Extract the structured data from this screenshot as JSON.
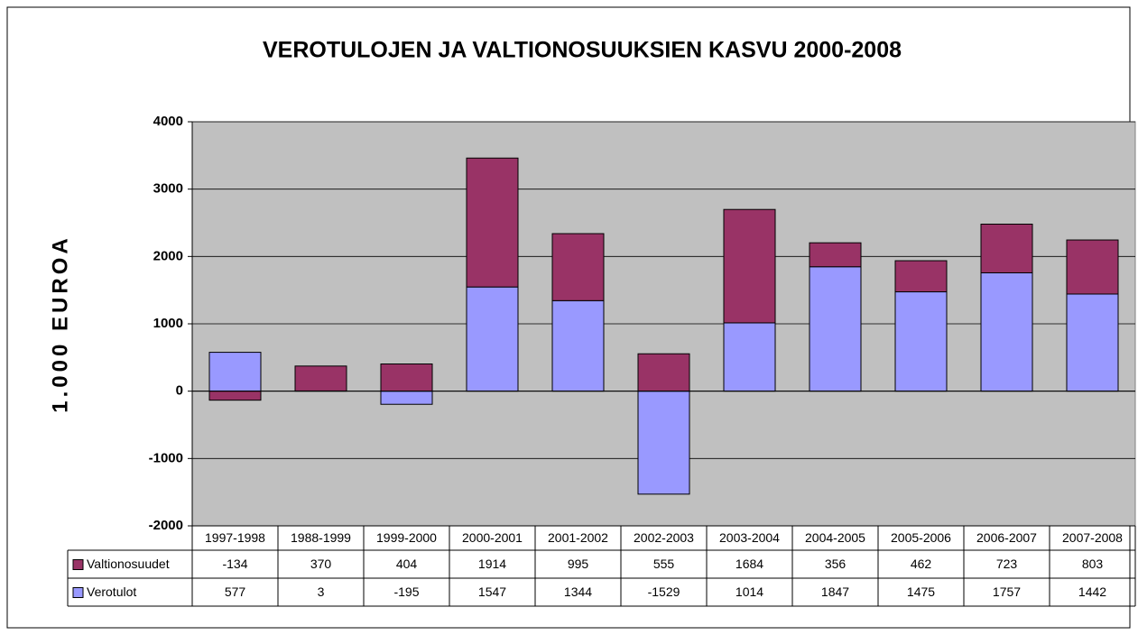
{
  "chart_data": {
    "type": "bar",
    "stacked": true,
    "title": "VEROTULOJEN JA VALTIONOSUUKSIEN KASVU 2000-2008",
    "y_label": "1.000  EUROA",
    "categories": [
      "1997-1998",
      "1988-1999",
      "1999-2000",
      "2000-2001",
      "2001-2002",
      "2002-2003",
      "2003-2004",
      "2004-2005",
      "2005-2006",
      "2006-2007",
      "2007-2008"
    ],
    "series": [
      {
        "name": "Valtionosuudet",
        "color": "#993366",
        "values": [
          -134,
          370,
          404,
          1914,
          995,
          555,
          1684,
          356,
          462,
          723,
          803
        ]
      },
      {
        "name": "Verotulot",
        "color": "#9999ff",
        "values": [
          577,
          3,
          -195,
          1547,
          1344,
          -1529,
          1014,
          1847,
          1475,
          1757,
          1442
        ]
      }
    ],
    "stack_order": [
      1,
      0
    ],
    "ylim": [
      -2000,
      4000
    ],
    "yticks": [
      -2000,
      -1000,
      0,
      1000,
      2000,
      3000,
      4000
    ],
    "grid": true,
    "plot_background": "#c0c0c0",
    "data_table": true
  }
}
